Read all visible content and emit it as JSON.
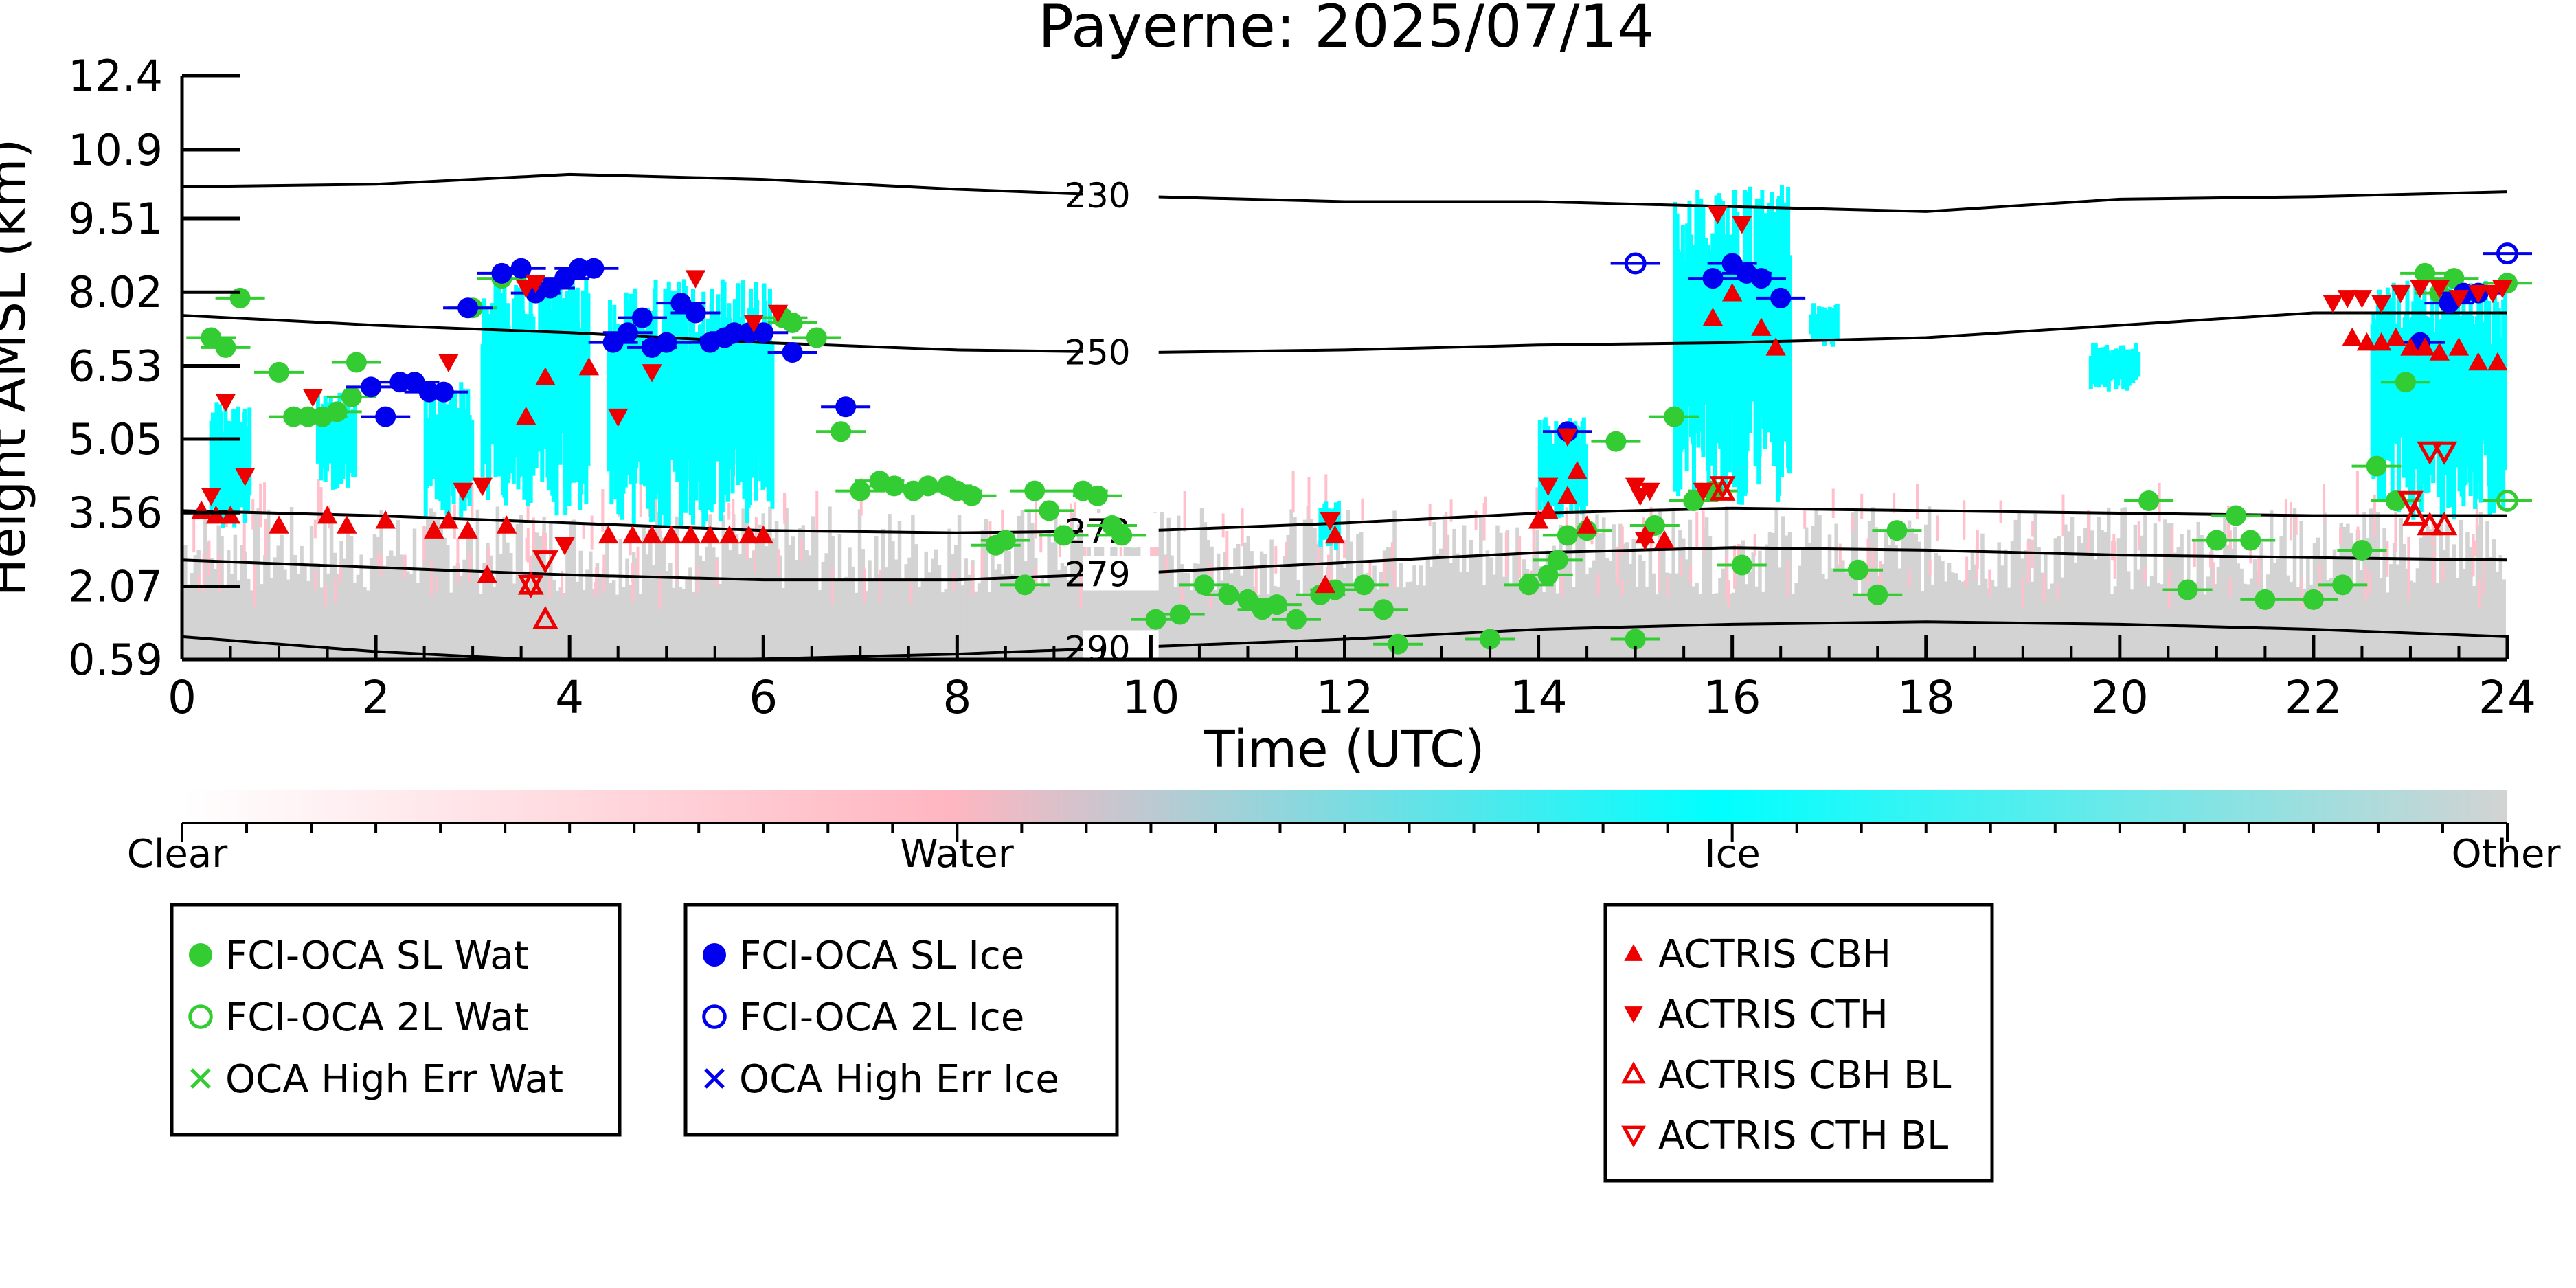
{
  "chart_data": {
    "type": "scatter",
    "title": "Payerne: 2025/07/14",
    "xlabel": "Time (UTC)",
    "ylabel": "Height AMSL (km)",
    "xlim": [
      0,
      24
    ],
    "ylim": [
      0.59,
      12.4
    ],
    "x_ticks": [
      "0",
      "2",
      "4",
      "6",
      "8",
      "10",
      "12",
      "14",
      "16",
      "18",
      "20",
      "22",
      "24"
    ],
    "y_ticks": [
      "0.59",
      "2.07",
      "3.56",
      "5.05",
      "6.53",
      "8.02",
      "9.51",
      "10.9",
      "12.4"
    ],
    "grid": false,
    "colorbar": {
      "labels": [
        "Clear",
        "Water",
        "Ice",
        "Other"
      ],
      "colors": [
        "#ffffff",
        "#ffb6c1",
        "#00ffff",
        "#d3d3d3"
      ]
    },
    "contours": [
      {
        "label": "230",
        "x": [
          0,
          2,
          4,
          6,
          8,
          10,
          12,
          14,
          16,
          18,
          20,
          22,
          24
        ],
        "y": [
          10.15,
          10.2,
          10.4,
          10.3,
          10.1,
          9.95,
          9.85,
          9.85,
          9.75,
          9.65,
          9.9,
          9.95,
          10.05
        ]
      },
      {
        "label": "250",
        "x": [
          0,
          2,
          4,
          6,
          8,
          10,
          12,
          14,
          16,
          18,
          20,
          22,
          24
        ],
        "y": [
          7.55,
          7.35,
          7.2,
          7.0,
          6.85,
          6.8,
          6.85,
          6.95,
          7.0,
          7.1,
          7.35,
          7.6,
          7.6
        ]
      },
      {
        "label": "273",
        "x": [
          0,
          2,
          4,
          6,
          8,
          10,
          12,
          14,
          16,
          18,
          20,
          22,
          24
        ],
        "y": [
          3.6,
          3.5,
          3.35,
          3.2,
          3.15,
          3.2,
          3.35,
          3.55,
          3.65,
          3.6,
          3.55,
          3.5,
          3.5
        ]
      },
      {
        "label": "279",
        "x": [
          0,
          2,
          4,
          6,
          8,
          10,
          12,
          14,
          16,
          18,
          20,
          22,
          24
        ],
        "y": [
          2.6,
          2.45,
          2.3,
          2.2,
          2.2,
          2.35,
          2.55,
          2.75,
          2.85,
          2.8,
          2.7,
          2.65,
          2.6
        ]
      },
      {
        "label": "290",
        "x": [
          0,
          2,
          4,
          6,
          8,
          10,
          12,
          14,
          16,
          18,
          20,
          22,
          24
        ],
        "y": [
          1.05,
          0.75,
          0.55,
          0.6,
          0.7,
          0.85,
          1.0,
          1.2,
          1.3,
          1.35,
          1.3,
          1.2,
          1.05
        ]
      }
    ],
    "cloud_regions": [
      {
        "class": "Ice",
        "x0": 0.3,
        "x1": 0.7,
        "y0": 3.2,
        "y1": 5.8
      },
      {
        "class": "Ice",
        "x0": 1.4,
        "x1": 1.8,
        "y0": 4.0,
        "y1": 6.0
      },
      {
        "class": "Ice",
        "x0": 2.5,
        "x1": 3.0,
        "y0": 3.4,
        "y1": 6.2
      },
      {
        "class": "Ice",
        "x0": 3.1,
        "x1": 4.2,
        "y0": 3.5,
        "y1": 8.3
      },
      {
        "class": "Ice",
        "x0": 4.4,
        "x1": 6.1,
        "y0": 3.2,
        "y1": 8.3
      },
      {
        "class": "Ice",
        "x0": 11.75,
        "x1": 11.95,
        "y0": 2.8,
        "y1": 3.8
      },
      {
        "class": "Ice",
        "x0": 14.0,
        "x1": 14.5,
        "y0": 3.4,
        "y1": 5.5
      },
      {
        "class": "Ice",
        "x0": 15.4,
        "x1": 16.6,
        "y0": 3.7,
        "y1": 10.2
      },
      {
        "class": "Ice",
        "x0": 16.8,
        "x1": 17.1,
        "y0": 6.9,
        "y1": 7.8
      },
      {
        "class": "Ice",
        "x0": 19.7,
        "x1": 20.2,
        "y0": 6.0,
        "y1": 7.0
      },
      {
        "class": "Ice",
        "x0": 22.6,
        "x1": 24.0,
        "y0": 3.4,
        "y1": 8.3
      }
    ],
    "series": [
      {
        "name": "FCI-OCA SL Wat",
        "marker": "filled-circle",
        "color": "#33cc33",
        "x": [
          0.3,
          0.45,
          0.6,
          1.0,
          1.15,
          1.3,
          1.45,
          1.6,
          1.75,
          1.8,
          3.0,
          3.3,
          6.2,
          6.3,
          6.55,
          6.8,
          7.0,
          7.2,
          7.35,
          7.55,
          7.7,
          7.9,
          8.0,
          8.15,
          8.4,
          8.5,
          8.7,
          8.8,
          8.95,
          9.1,
          9.3,
          9.45,
          9.6,
          9.7,
          10.05,
          10.3,
          10.55,
          10.8,
          11.0,
          11.15,
          11.3,
          11.5,
          11.75,
          11.9,
          12.2,
          12.4,
          12.55,
          13.5,
          13.9,
          14.1,
          14.2,
          14.3,
          14.5,
          14.8,
          15.0,
          15.2,
          15.4,
          15.6,
          15.8,
          16.1,
          17.3,
          17.5,
          17.7,
          20.3,
          20.7,
          21.0,
          21.2,
          21.35,
          21.5,
          22.0,
          22.3,
          22.5,
          22.65,
          22.85,
          22.95,
          23.15,
          23.3,
          23.45,
          24.0
        ],
        "y": [
          7.1,
          6.9,
          7.9,
          6.4,
          5.5,
          5.5,
          5.5,
          5.6,
          5.9,
          6.6,
          7.7,
          8.3,
          7.5,
          7.4,
          7.1,
          5.2,
          4.0,
          4.2,
          4.1,
          4.0,
          4.1,
          4.1,
          4.0,
          3.9,
          2.9,
          3.0,
          2.1,
          4.0,
          3.6,
          3.1,
          4.0,
          3.9,
          3.3,
          3.1,
          1.4,
          1.5,
          2.1,
          1.9,
          1.8,
          1.6,
          1.7,
          1.4,
          1.9,
          2.0,
          2.1,
          1.6,
          0.9,
          1.0,
          2.1,
          2.3,
          2.6,
          3.1,
          3.2,
          5.0,
          1.0,
          3.3,
          5.5,
          3.8,
          4.0,
          2.5,
          2.4,
          1.9,
          3.2,
          3.8,
          2.0,
          3.0,
          3.5,
          3.0,
          1.8,
          1.8,
          2.1,
          2.8,
          4.5,
          3.8,
          6.2,
          8.4,
          8.0,
          8.3,
          8.2
        ]
      },
      {
        "name": "FCI-OCA 2L Wat",
        "marker": "open-circle",
        "color": "#33cc33",
        "x": [
          24.0
        ],
        "y": [
          3.8
        ]
      },
      {
        "name": "OCA High Err Wat",
        "marker": "x",
        "color": "#33cc33",
        "x": [],
        "y": []
      },
      {
        "name": "FCI-OCA SL Ice",
        "marker": "filled-circle",
        "color": "#0000ee",
        "x": [
          1.95,
          2.1,
          2.25,
          2.4,
          2.55,
          2.7,
          2.95,
          3.3,
          3.5,
          3.65,
          3.8,
          3.95,
          4.1,
          4.25,
          4.45,
          4.6,
          4.75,
          4.85,
          5.0,
          5.15,
          5.3,
          5.45,
          5.6,
          5.7,
          5.85,
          6.0,
          6.3,
          6.85,
          14.3,
          15.8,
          16.0,
          16.15,
          16.3,
          16.5,
          23.1,
          23.4,
          23.55,
          23.7
        ],
        "y": [
          6.1,
          5.5,
          6.2,
          6.2,
          6.0,
          6.0,
          7.7,
          8.4,
          8.5,
          8.0,
          8.1,
          8.3,
          8.5,
          8.5,
          7.0,
          7.2,
          7.5,
          6.9,
          7.0,
          7.8,
          7.6,
          7.0,
          7.1,
          7.2,
          7.2,
          7.2,
          6.8,
          5.7,
          5.2,
          8.3,
          8.6,
          8.4,
          8.3,
          7.9,
          7.0,
          7.8,
          8.0,
          8.0
        ]
      },
      {
        "name": "FCI-OCA 2L Ice",
        "marker": "open-circle",
        "color": "#0000ee",
        "x": [
          15.0,
          24.0
        ],
        "y": [
          8.6,
          8.8
        ]
      },
      {
        "name": "OCA High Err Ice",
        "marker": "x",
        "color": "#0000ee",
        "x": [],
        "y": []
      },
      {
        "name": "ACTRIS CBH",
        "marker": "triangle-up",
        "color": "#ee0000",
        "x": [
          0.2,
          0.35,
          0.5,
          1.0,
          1.5,
          1.7,
          2.1,
          2.6,
          2.75,
          2.95,
          3.15,
          3.35,
          3.55,
          3.75,
          4.2,
          4.4,
          4.65,
          4.85,
          5.05,
          5.25,
          5.45,
          5.65,
          5.85,
          6.0,
          11.8,
          11.9,
          14.0,
          14.1,
          14.3,
          14.4,
          14.5,
          15.1,
          15.3,
          15.8,
          16.0,
          16.3,
          16.45,
          22.4,
          22.55,
          22.7,
          22.85,
          23.0,
          23.15,
          23.3,
          23.5,
          23.7,
          23.9
        ],
        "y": [
          3.6,
          3.5,
          3.5,
          3.3,
          3.5,
          3.3,
          3.4,
          3.2,
          3.4,
          3.2,
          2.3,
          3.3,
          5.5,
          6.3,
          6.5,
          3.1,
          3.1,
          3.1,
          3.1,
          3.1,
          3.1,
          3.1,
          3.1,
          3.1,
          2.1,
          3.1,
          3.4,
          3.6,
          3.9,
          4.4,
          3.3,
          3.1,
          3.0,
          7.5,
          8.0,
          7.3,
          6.9,
          7.1,
          7.0,
          7.0,
          7.1,
          6.9,
          6.9,
          6.8,
          6.9,
          6.6,
          6.6
        ]
      },
      {
        "name": "ACTRIS CTH",
        "marker": "triangle-down",
        "color": "#ee0000",
        "x": [
          0.3,
          0.45,
          0.65,
          1.35,
          2.75,
          2.9,
          3.1,
          3.55,
          3.65,
          3.95,
          4.5,
          4.85,
          5.3,
          5.9,
          6.15,
          11.85,
          14.1,
          14.3,
          15.0,
          15.05,
          15.1,
          15.15,
          15.7,
          15.85,
          16.1,
          22.2,
          22.35,
          22.5,
          22.7,
          22.9,
          23.1,
          23.3,
          23.5,
          23.7,
          23.85,
          23.95
        ],
        "y": [
          3.9,
          5.8,
          4.3,
          5.9,
          6.6,
          4.0,
          4.1,
          8.1,
          8.2,
          2.9,
          5.5,
          6.4,
          8.3,
          7.4,
          7.6,
          3.4,
          4.1,
          5.1,
          4.1,
          3.9,
          3.0,
          4.0,
          4.0,
          9.6,
          9.4,
          7.8,
          7.9,
          7.9,
          7.8,
          8.0,
          8.1,
          8.1,
          7.9,
          8.0,
          8.0,
          8.1
        ]
      },
      {
        "name": "ACTRIS CBH BL",
        "marker": "open-triangle-up",
        "color": "#ee0000",
        "x": [
          3.6,
          3.75,
          15.9,
          23.05,
          23.2,
          23.35
        ],
        "y": [
          2.1,
          1.4,
          4.0,
          3.5,
          3.3,
          3.3
        ]
      },
      {
        "name": "ACTRIS CTH BL",
        "marker": "open-triangle-down",
        "color": "#ee0000",
        "x": [
          3.6,
          3.75,
          15.9,
          23.0,
          23.2,
          23.35
        ],
        "y": [
          2.1,
          2.6,
          4.1,
          3.8,
          4.8,
          4.8
        ]
      }
    ]
  }
}
